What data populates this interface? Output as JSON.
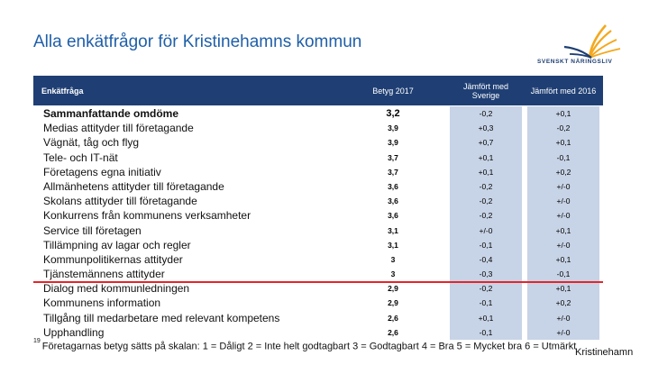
{
  "title": "Alla enkätfrågor för Kristinehamns kommun",
  "logo": {
    "text": "SVENSKT NÄRINGSLIV",
    "icon": "swan-logo-icon",
    "colors": [
      "#f4a81d",
      "#1d3f73"
    ]
  },
  "table": {
    "headers": {
      "question": "Enkätfråga",
      "betyg": "Betyg 2017",
      "sverige": "Jämfört med Sverige",
      "prev": "Jämfört med 2016"
    },
    "rows": [
      {
        "q": "Sammanfattande omdöme",
        "b": "3,2",
        "s": "-0,2",
        "p": "+0,1"
      },
      {
        "q": "Medias attityder till företagande",
        "b": "3,9",
        "s": "+0,3",
        "p": "-0,2"
      },
      {
        "q": "Vägnät, tåg och flyg",
        "b": "3,9",
        "s": "+0,7",
        "p": "+0,1"
      },
      {
        "q": "Tele- och IT-nät",
        "b": "3,7",
        "s": "+0,1",
        "p": "-0,1"
      },
      {
        "q": "Företagens egna initiativ",
        "b": "3,7",
        "s": "+0,1",
        "p": "+0,2"
      },
      {
        "q": "Allmänhetens attityder till företagande",
        "b": "3,6",
        "s": "-0,2",
        "p": "+/-0"
      },
      {
        "q": "Skolans attityder till företagande",
        "b": "3,6",
        "s": "-0,2",
        "p": "+/-0"
      },
      {
        "q": "Konkurrens från kommunens verksamheter",
        "b": "3,6",
        "s": "-0,2",
        "p": "+/-0"
      },
      {
        "q": "Service till företagen",
        "b": "3,1",
        "s": "+/-0",
        "p": "+0,1"
      },
      {
        "q": "Tillämpning av lagar och regler",
        "b": "3,1",
        "s": "-0,1",
        "p": "+/-0"
      },
      {
        "q": "Kommunpolitikernas attityder",
        "b": "3",
        "s": "-0,4",
        "p": "+0,1"
      },
      {
        "q": "Tjänstemännens attityder",
        "b": "3",
        "s": "-0,3",
        "p": "-0,1"
      },
      {
        "q": "Dialog med kommunledningen",
        "b": "2,9",
        "s": "-0,2",
        "p": "+0,1"
      },
      {
        "q": "Kommunens information",
        "b": "2,9",
        "s": "-0,1",
        "p": "+0,2"
      },
      {
        "q": "Tillgång till medarbetare med relevant kompetens",
        "b": "2,6",
        "s": "+0,1",
        "p": "+/-0"
      },
      {
        "q": "Upphandling",
        "b": "2,6",
        "s": "-0,1",
        "p": "+/-0"
      }
    ]
  },
  "footnote": {
    "number": "19",
    "text": "Företagarnas betyg sätts på skalan: 1 = Dåligt 2 = Inte helt godtagbart 3 = Godtagbart 4 = Bra 5 = Mycket bra 6 = Utmärkt"
  },
  "footer_right": "Kristinehamn"
}
